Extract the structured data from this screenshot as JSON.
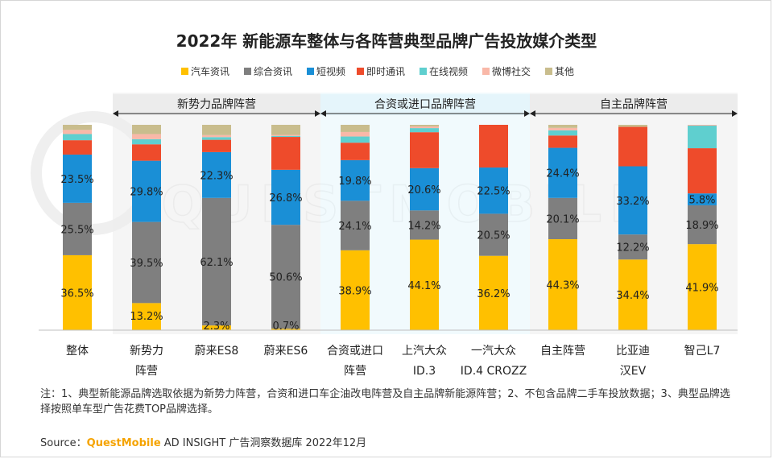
{
  "chart_data": {
    "type": "bar",
    "stacked": true,
    "normalized": true,
    "title": "2022年 新能源车整体与各阵营典型品牌广告投放媒介类型",
    "legend_position": "top",
    "series": [
      {
        "name": "汽车资讯",
        "color": "#ffc000",
        "values": [
          36.5,
          13.2,
          2.3,
          0.7,
          38.9,
          44.1,
          36.2,
          44.3,
          34.4,
          41.9
        ]
      },
      {
        "name": "综合资讯",
        "color": "#7f7f7f",
        "values": [
          25.5,
          39.5,
          62.1,
          50.6,
          24.1,
          14.2,
          20.5,
          20.1,
          12.2,
          18.9
        ]
      },
      {
        "name": "短视频",
        "color": "#1a8fd6",
        "values": [
          23.5,
          29.8,
          22.3,
          26.8,
          19.8,
          20.6,
          22.5,
          24.4,
          33.2,
          5.8
        ]
      },
      {
        "name": "即时通讯",
        "color": "#ee4b2b",
        "values": [
          7.0,
          8.0,
          6.0,
          16.0,
          8.5,
          17.5,
          20.8,
          6.0,
          19.2,
          22.0
        ]
      },
      {
        "name": "在线视频",
        "color": "#5fcfcf",
        "values": [
          3.0,
          2.5,
          1.3,
          0.5,
          3.0,
          2.0,
          0,
          2.5,
          0,
          11.0
        ]
      },
      {
        "name": "微博社交",
        "color": "#f9b8a8",
        "values": [
          2.0,
          2.5,
          1.0,
          0.5,
          2.2,
          0.8,
          0,
          1.2,
          0,
          0.4
        ]
      },
      {
        "name": "其他",
        "color": "#c9bd8d",
        "values": [
          2.5,
          4.5,
          5.0,
          4.9,
          3.5,
          0.8,
          0,
          1.5,
          1.0,
          0
        ]
      }
    ],
    "labels": [
      [
        "36.5%",
        "25.5%",
        "23.5%"
      ],
      [
        "13.2%",
        "39.5%",
        "29.8%"
      ],
      [
        "2.3%",
        "62.1%",
        "22.3%"
      ],
      [
        "0.7%",
        "50.6%",
        "26.8%"
      ],
      [
        "38.9%",
        "24.1%",
        "19.8%"
      ],
      [
        "44.1%",
        "14.2%",
        "20.6%"
      ],
      [
        "36.2%",
        "20.5%",
        "22.5%"
      ],
      [
        "44.3%",
        "20.1%",
        "24.4%"
      ],
      [
        "34.4%",
        "12.2%",
        "33.2%"
      ],
      [
        "41.9%",
        "18.9%",
        "5.8%"
      ]
    ],
    "categories": [
      [
        "整体"
      ],
      [
        "新势力",
        "阵营"
      ],
      [
        "蔚来ES8"
      ],
      [
        "蔚来ES6"
      ],
      [
        "合资或进口",
        "阵营"
      ],
      [
        "上汽大众",
        "ID.3"
      ],
      [
        "一汽大众",
        "ID.4 CROZZ"
      ],
      [
        "自主阵营"
      ],
      [
        "比亚迪",
        "汉EV"
      ],
      [
        "智己L7"
      ]
    ],
    "groups": [
      {
        "name": "新势力品牌阵营",
        "from": 1,
        "to": 3
      },
      {
        "name": "合资或进口品牌阵营",
        "from": 4,
        "to": 6
      },
      {
        "name": "自主品牌阵营",
        "from": 7,
        "to": 9
      }
    ],
    "ylim": [
      0,
      100
    ]
  },
  "watermark": "QUESTMOBILE",
  "note": "注：1、典型新能源品牌选取依据为新势力阵营，合资和进口车企油改电阵营及自主品牌新能源阵营；2、不包含品牌二手车投放数据；3、典型品牌选择按照单车型广告花费TOP品牌选择。",
  "source": {
    "prefix": "Source：",
    "brand": "QuestMobile",
    "rest": " AD INSIGHT 广告洞察数据库 2022年12月"
  }
}
